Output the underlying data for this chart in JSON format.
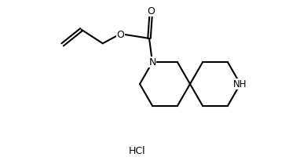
{
  "background_color": "#ffffff",
  "line_color": "#000000",
  "line_width": 1.5,
  "text_color": "#000000",
  "font_size": 8.5,
  "hcl_text": "HCl",
  "hcl_fontsize": 9,
  "N_label": "N",
  "NH_label": "NH",
  "O_label": "O",
  "figsize": [
    3.68,
    2.14
  ],
  "dpi": 100,
  "xlim": [
    0,
    368
  ],
  "ylim": [
    0,
    214
  ]
}
